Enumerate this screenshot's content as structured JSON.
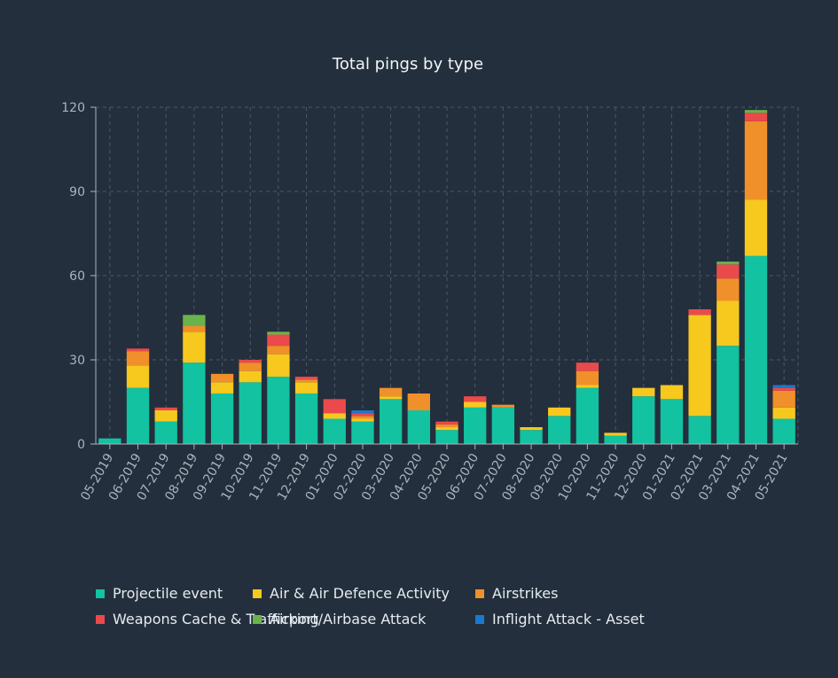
{
  "chart_data": {
    "type": "bar",
    "stacked": true,
    "title": "Total pings by type",
    "xlabel": "",
    "ylabel": "",
    "ylim": [
      0,
      120
    ],
    "yticks": [
      0,
      30,
      60,
      90,
      120
    ],
    "grid": true,
    "legend_position": "bottom",
    "categories": [
      "05-2019",
      "06-2019",
      "07-2019",
      "08-2019",
      "09-2019",
      "10-2019",
      "11-2019",
      "12-2019",
      "01-2020",
      "02-2020",
      "03-2020",
      "04-2020",
      "05-2020",
      "06-2020",
      "07-2020",
      "08-2020",
      "09-2020",
      "10-2020",
      "11-2020",
      "12-2020",
      "01-2021",
      "02-2021",
      "03-2021",
      "04-2021",
      "05-2021"
    ],
    "series": [
      {
        "name": "Projectile event",
        "color": "#12c2a0",
        "values": [
          2,
          20,
          8,
          29,
          18,
          22,
          24,
          18,
          9,
          8,
          16,
          12,
          5,
          13,
          13,
          5,
          10,
          20,
          3,
          17,
          16,
          10,
          35,
          67,
          9
        ]
      },
      {
        "name": "Air & Air Defence Activity",
        "color": "#f7c81e",
        "values": [
          0,
          8,
          4,
          11,
          4,
          4,
          8,
          4,
          2,
          1,
          1,
          0,
          1,
          2,
          0,
          1,
          3,
          1,
          1,
          3,
          5,
          36,
          16,
          20,
          4
        ]
      },
      {
        "name": "Airstrikes",
        "color": "#f0902a",
        "values": [
          0,
          5,
          0,
          2,
          3,
          3,
          3,
          1,
          0,
          1,
          3,
          6,
          1,
          0,
          1,
          0,
          0,
          5,
          0,
          0,
          0,
          0,
          8,
          28,
          6
        ]
      },
      {
        "name": "Weapons Cache & Trafficking",
        "color": "#ea4a4b",
        "values": [
          0,
          1,
          1,
          0,
          0,
          1,
          4,
          1,
          5,
          1,
          0,
          0,
          1,
          2,
          0,
          0,
          0,
          3,
          0,
          0,
          0,
          2,
          5,
          3,
          1
        ]
      },
      {
        "name": "Airport/Airbase Attack",
        "color": "#6ab34c",
        "values": [
          0,
          0,
          0,
          4,
          0,
          0,
          1,
          0,
          0,
          0,
          0,
          0,
          0,
          0,
          0,
          0,
          0,
          0,
          0,
          0,
          0,
          0,
          1,
          1,
          0
        ]
      },
      {
        "name": "Inflight Attack - Asset",
        "color": "#1b78cc",
        "values": [
          0,
          0,
          0,
          0,
          0,
          0,
          0,
          0,
          0,
          1,
          0,
          0,
          0,
          0,
          0,
          0,
          0,
          0,
          0,
          0,
          0,
          0,
          0,
          0,
          1
        ]
      }
    ]
  }
}
